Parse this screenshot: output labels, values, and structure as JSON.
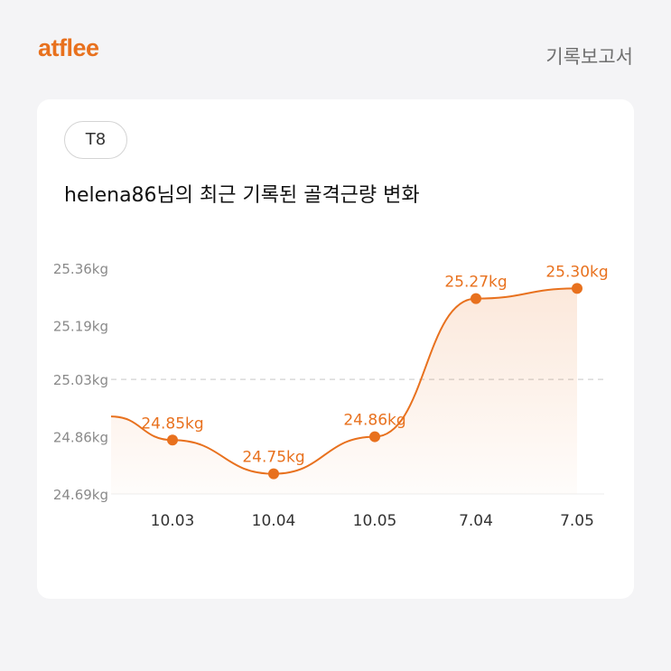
{
  "header": {
    "logo": "atflee",
    "report_label": "기록보고서"
  },
  "card": {
    "tag": "T8",
    "title": "helena86님의 최근 기록된 골격근량 변화"
  },
  "colors": {
    "accent": "#e8711e",
    "background": "#f4f4f6",
    "card": "#ffffff"
  },
  "chart_data": {
    "type": "line",
    "categories": [
      "10.03",
      "10.04",
      "10.05",
      "7.04",
      "7.05"
    ],
    "values": [
      24.85,
      24.75,
      24.86,
      25.27,
      25.3
    ],
    "value_labels": [
      "24.85kg",
      "24.75kg",
      "24.86kg",
      "25.27kg",
      "25.30kg"
    ],
    "y_ticks": [
      25.36,
      25.19,
      25.03,
      24.86,
      24.69
    ],
    "y_tick_labels": [
      "25.36kg",
      "25.19kg",
      "25.03kg",
      "24.86kg",
      "24.69kg"
    ],
    "ylim": [
      24.69,
      25.36
    ],
    "reference_line": 25.03,
    "area_fill": true,
    "grid": false,
    "line_start_value": 24.92
  }
}
